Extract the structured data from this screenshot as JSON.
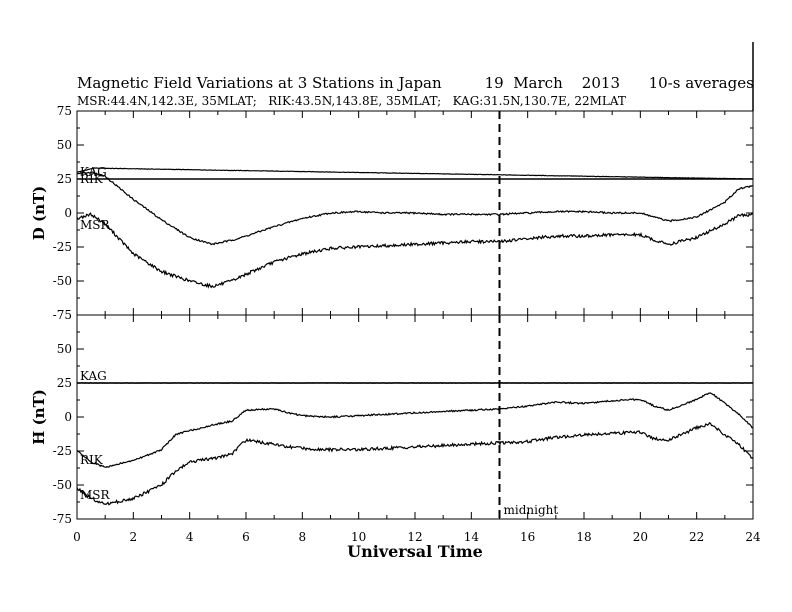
{
  "header": {
    "title": "Magnetic Field Variations at 3 Stations in Japan",
    "date": "19  March    2013",
    "averaging": "10-s averages",
    "stations_line": "MSR:44.4N,142.3E, 35MLAT;   RIK:43.5N,143.8E, 35MLAT;   KAG:31.5N,130.7E, 22MLAT"
  },
  "chart_data": [
    {
      "type": "line",
      "panel": "D",
      "ylabel": "D (nT)",
      "ylim": [
        -75,
        75
      ],
      "yticks": [
        -75,
        -50,
        -25,
        0,
        25,
        50,
        75
      ],
      "xlim": [
        0,
        24
      ],
      "series": [
        {
          "name": "KAG",
          "x": [
            0,
            0.6,
            24
          ],
          "values": [
            30,
            33,
            25
          ]
        },
        {
          "name": "RIK",
          "x": [
            0,
            0.5,
            1,
            2,
            3,
            4,
            4.8,
            5.5,
            6,
            7,
            8,
            9,
            10,
            11,
            12,
            13,
            14,
            15,
            16,
            17,
            18,
            19,
            20,
            20.5,
            21,
            22,
            23,
            23.5,
            24
          ],
          "values": [
            29,
            30,
            27,
            10,
            -5,
            -18,
            -23,
            -20,
            -17,
            -10,
            -4,
            0,
            1,
            0,
            0,
            -1,
            -1,
            -1,
            0,
            1,
            1,
            0,
            0,
            -3,
            -6,
            -3,
            8,
            18,
            20
          ]
        },
        {
          "name": "MSR",
          "x": [
            0,
            0.5,
            1,
            2,
            3,
            4,
            4.8,
            5.5,
            6,
            7,
            8,
            9,
            10,
            11,
            12,
            13,
            14,
            15,
            16,
            17,
            18,
            19,
            20,
            20.5,
            21,
            22,
            23,
            23.5,
            24
          ],
          "values": [
            -4,
            -1,
            -8,
            -30,
            -43,
            -50,
            -54,
            -50,
            -45,
            -36,
            -30,
            -26,
            -25,
            -24,
            -23,
            -22,
            -21,
            -21,
            -19,
            -17,
            -17,
            -16,
            -16,
            -20,
            -23,
            -18,
            -8,
            -2,
            -1
          ]
        }
      ]
    },
    {
      "type": "line",
      "panel": "H",
      "ylabel": "H (nT)",
      "xlabel": "Universal Time",
      "ylim": [
        -75,
        75
      ],
      "yticks": [
        -75,
        -50,
        -25,
        0,
        25,
        50,
        75
      ],
      "xlim": [
        0,
        24
      ],
      "xticks": [
        0,
        2,
        4,
        6,
        8,
        10,
        12,
        14,
        16,
        18,
        20,
        22,
        24
      ],
      "series": [
        {
          "name": "KAG",
          "x": [
            0,
            24
          ],
          "values": [
            25,
            25
          ]
        },
        {
          "name": "RIK",
          "x": [
            0,
            0.5,
            1,
            2,
            3,
            3.5,
            4,
            5,
            5.5,
            6,
            7,
            7.5,
            8,
            9,
            10,
            11,
            12,
            13,
            14,
            15,
            16,
            17,
            18,
            19,
            20,
            20.5,
            21,
            22,
            22.5,
            23,
            23.5,
            24
          ],
          "values": [
            -25,
            -33,
            -37,
            -32,
            -24,
            -13,
            -10,
            -5,
            -3,
            5,
            6,
            3,
            1,
            0,
            1,
            2,
            3,
            4,
            5,
            6,
            8,
            11,
            10,
            12,
            13,
            8,
            5,
            13,
            18,
            10,
            2,
            -8
          ]
        },
        {
          "name": "MSR",
          "x": [
            0,
            0.5,
            1,
            2,
            3,
            3.5,
            4,
            5,
            5.5,
            6,
            7,
            7.5,
            8,
            9,
            10,
            11,
            12,
            13,
            14,
            15,
            16,
            17,
            18,
            19,
            20,
            20.5,
            21,
            22,
            22.5,
            23,
            23.5,
            24
          ],
          "values": [
            -52,
            -60,
            -64,
            -60,
            -50,
            -40,
            -33,
            -30,
            -27,
            -17,
            -20,
            -22,
            -23,
            -24,
            -24,
            -23,
            -22,
            -21,
            -20,
            -19,
            -18,
            -15,
            -13,
            -12,
            -11,
            -16,
            -17,
            -8,
            -5,
            -13,
            -20,
            -31
          ]
        }
      ]
    }
  ],
  "annotations": {
    "midnight_x": 15,
    "midnight_label": "midnight",
    "reference_line_value": 25
  }
}
